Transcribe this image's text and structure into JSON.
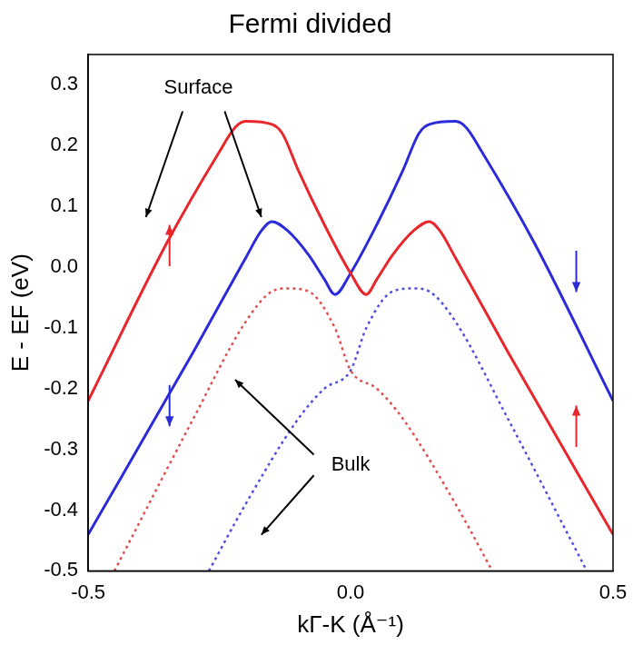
{
  "chart_data": {
    "type": "line",
    "title": "Fermi divided",
    "x_label": "kΓ-K (Å⁻¹)",
    "y_label": "E - EF (eV)",
    "xlim": [
      -0.5,
      0.5
    ],
    "xticks": [
      -0.5,
      {
        "value": 0,
        "label": "0.0"
      },
      0.5
    ],
    "ylim": [
      -0.5,
      0.35
    ],
    "yticks": [
      -0.5,
      -0.4,
      -0.3,
      -0.2,
      -0.1,
      {
        "value": 0,
        "label": "0.0"
      },
      0.1,
      0.2,
      0.3
    ],
    "grid": false,
    "annotations": [
      "Surface",
      "Bulk"
    ],
    "series": [
      {
        "color": "#e8262b",
        "line_style": "solid",
        "x": [
          -0.5,
          -0.35,
          -0.25,
          -0.22,
          -0.2,
          -0.15,
          -0.13,
          -0.1,
          -0.05,
          0.0,
          0.03,
          0.05,
          0.08,
          0.12,
          0.15,
          0.17,
          0.2,
          0.3,
          0.5
        ],
        "values": [
          -0.22,
          0.04,
          0.19,
          0.23,
          0.24,
          0.235,
          0.22,
          0.16,
          0.07,
          -0.01,
          -0.045,
          -0.02,
          0.02,
          0.06,
          0.075,
          0.06,
          0.015,
          -0.14,
          -0.44
        ]
      },
      {
        "color": "#2b2bd9",
        "line_style": "solid",
        "x": [
          -0.5,
          -0.3,
          -0.2,
          -0.17,
          -0.15,
          -0.12,
          -0.08,
          -0.05,
          -0.03,
          0.0,
          0.05,
          0.1,
          0.13,
          0.15,
          0.2,
          0.22,
          0.25,
          0.35,
          0.5
        ],
        "values": [
          -0.44,
          -0.14,
          0.015,
          0.06,
          0.075,
          0.06,
          0.02,
          -0.02,
          -0.045,
          -0.01,
          0.07,
          0.16,
          0.22,
          0.235,
          0.24,
          0.23,
          0.19,
          0.04,
          -0.22
        ]
      },
      {
        "color": "#e05050",
        "line_style": "dotted",
        "x": [
          -0.45,
          -0.3,
          -0.2,
          -0.15,
          -0.12,
          -0.08,
          -0.03,
          0.0,
          0.05,
          0.1,
          0.2,
          0.27
        ],
        "values": [
          -0.5,
          -0.25,
          -0.09,
          -0.04,
          -0.035,
          -0.04,
          -0.1,
          -0.17,
          -0.2,
          -0.25,
          -0.39,
          -0.5
        ]
      },
      {
        "color": "#5050e0",
        "line_style": "dotted",
        "x": [
          -0.27,
          -0.2,
          -0.1,
          -0.05,
          0.0,
          0.03,
          0.08,
          0.12,
          0.15,
          0.2,
          0.3,
          0.45
        ],
        "values": [
          -0.5,
          -0.39,
          -0.25,
          -0.2,
          -0.17,
          -0.1,
          -0.04,
          -0.035,
          -0.04,
          -0.09,
          -0.25,
          -0.5
        ]
      }
    ]
  }
}
